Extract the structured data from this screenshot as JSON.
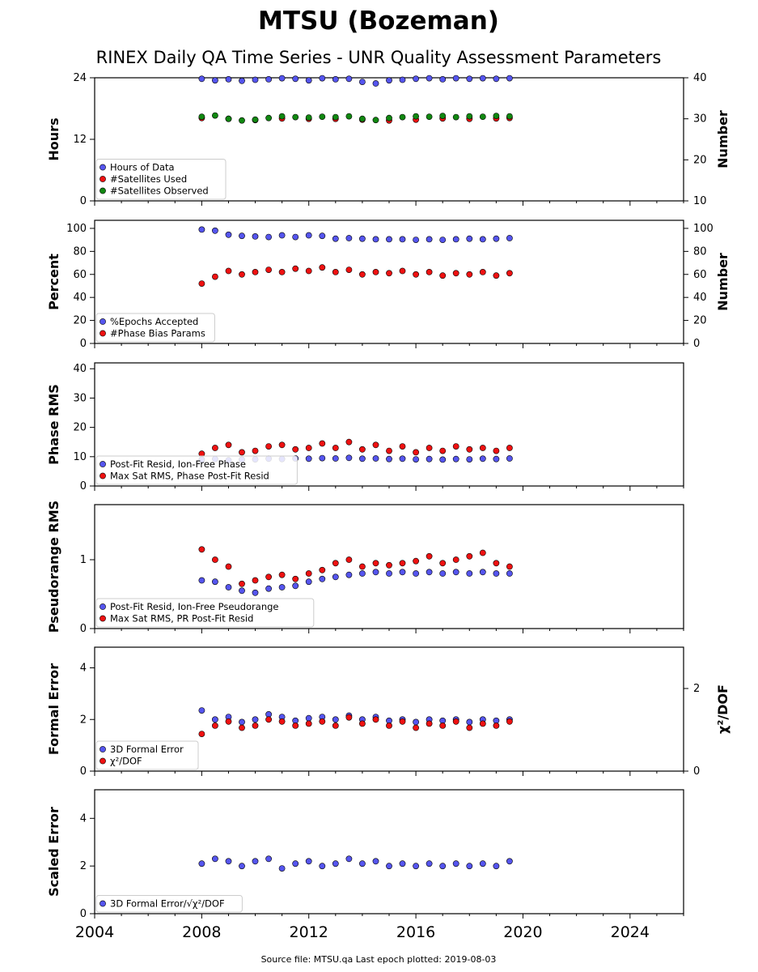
{
  "title": "MTSU (Bozeman)",
  "subtitle": "RINEX Daily QA Time Series - UNR Quality Assessment Parameters",
  "footer": "Source file: MTSU.qa Last epoch plotted: 2019-08-03",
  "colors": {
    "blue": "#5555ee",
    "red": "#ee1111",
    "green": "#118811",
    "edge": "#000000"
  },
  "chart_data": [
    {
      "type": "scatter",
      "ylabel": "Hours",
      "ylabel_right": "Number",
      "xlim": [
        2004,
        2026
      ],
      "ylim": [
        0,
        24
      ],
      "ylim_right": [
        10,
        40
      ],
      "x_ticks": [
        "2004",
        "2008",
        "2012",
        "2016",
        "2020",
        "2024"
      ],
      "y_ticks": [
        0,
        12,
        24
      ],
      "y_ticks_right": [
        10,
        20,
        30,
        40
      ],
      "legend_position": "lower-left",
      "series": [
        {
          "name": "Hours of Data",
          "color": "blue",
          "axis": "left",
          "x": [
            2008.0,
            2008.5,
            2009.0,
            2009.5,
            2010.0,
            2010.5,
            2011.0,
            2011.5,
            2012.0,
            2012.5,
            2013.0,
            2013.5,
            2014.0,
            2014.5,
            2015.0,
            2015.5,
            2016.0,
            2016.5,
            2017.0,
            2017.5,
            2018.0,
            2018.5,
            2019.0,
            2019.5
          ],
          "y": [
            23.8,
            23.5,
            23.7,
            23.4,
            23.6,
            23.7,
            23.9,
            23.8,
            23.5,
            23.9,
            23.7,
            23.8,
            23.2,
            22.9,
            23.5,
            23.6,
            23.8,
            23.9,
            23.7,
            23.9,
            23.8,
            23.9,
            23.8,
            23.9
          ]
        },
        {
          "name": "#Satellites Used",
          "color": "red",
          "axis": "right",
          "x": [
            2008.0,
            2009.0,
            2010.0,
            2011.0,
            2012.0,
            2013.0,
            2014.0,
            2015.0,
            2016.0,
            2017.0,
            2018.0,
            2019.0,
            2019.5
          ],
          "y": [
            30.2,
            30.0,
            29.7,
            30.1,
            30.0,
            30.0,
            29.8,
            29.6,
            29.8,
            30.1,
            30.0,
            30.1,
            30.2
          ]
        },
        {
          "name": "#Satellites Observed",
          "color": "green",
          "axis": "right",
          "x": [
            2008.0,
            2008.5,
            2009.0,
            2009.5,
            2010.0,
            2010.5,
            2011.0,
            2011.5,
            2012.0,
            2012.5,
            2013.0,
            2013.5,
            2014.0,
            2014.5,
            2015.0,
            2015.5,
            2016.0,
            2016.5,
            2017.0,
            2017.5,
            2018.0,
            2018.5,
            2019.0,
            2019.5
          ],
          "y": [
            30.5,
            30.8,
            30.0,
            29.6,
            29.8,
            30.2,
            30.6,
            30.4,
            30.3,
            30.5,
            30.4,
            30.6,
            30.0,
            29.7,
            30.2,
            30.4,
            30.6,
            30.5,
            30.7,
            30.4,
            30.6,
            30.5,
            30.7,
            30.6
          ]
        }
      ]
    },
    {
      "type": "scatter",
      "ylabel": "Percent",
      "ylabel_right": "Number",
      "xlim": [
        2004,
        2026
      ],
      "ylim": [
        0,
        107
      ],
      "ylim_right": [
        0,
        107
      ],
      "y_ticks": [
        0,
        20,
        40,
        60,
        80,
        100
      ],
      "y_ticks_right": [
        0,
        20,
        40,
        60,
        80,
        100
      ],
      "legend_position": "lower-left",
      "series": [
        {
          "name": "%Epochs Accepted",
          "color": "blue",
          "axis": "left",
          "x": [
            2008.0,
            2008.5,
            2009.0,
            2009.5,
            2010.0,
            2010.5,
            2011.0,
            2011.5,
            2012.0,
            2012.5,
            2013.0,
            2013.5,
            2014.0,
            2014.5,
            2015.0,
            2015.5,
            2016.0,
            2016.5,
            2017.0,
            2017.5,
            2018.0,
            2018.5,
            2019.0,
            2019.5
          ],
          "y": [
            99.0,
            98.0,
            94.5,
            93.5,
            93.0,
            92.5,
            94.0,
            92.5,
            94.0,
            93.5,
            91.0,
            91.5,
            91.0,
            90.5,
            90.5,
            90.5,
            90.0,
            90.5,
            90.0,
            90.5,
            91.0,
            90.5,
            91.0,
            91.5
          ]
        },
        {
          "name": "#Phase Bias Params",
          "color": "red",
          "axis": "right",
          "x": [
            2008.0,
            2008.5,
            2009.0,
            2009.5,
            2010.0,
            2010.5,
            2011.0,
            2011.5,
            2012.0,
            2012.5,
            2013.0,
            2013.5,
            2014.0,
            2014.5,
            2015.0,
            2015.5,
            2016.0,
            2016.5,
            2017.0,
            2017.5,
            2018.0,
            2018.5,
            2019.0,
            2019.5
          ],
          "y": [
            52.0,
            58.0,
            63.0,
            60.0,
            62.0,
            64.0,
            62.0,
            65.0,
            63.0,
            66.0,
            62.0,
            64.0,
            60.0,
            62.0,
            61.0,
            63.0,
            60.0,
            62.0,
            59.0,
            61.0,
            60.0,
            62.0,
            59.0,
            61.0
          ]
        }
      ]
    },
    {
      "type": "scatter",
      "ylabel": "Phase RMS",
      "xlim": [
        2004,
        2026
      ],
      "ylim": [
        0,
        42
      ],
      "y_ticks": [
        0,
        10,
        20,
        30,
        40
      ],
      "legend_position": "lower-left",
      "series": [
        {
          "name": "Post-Fit Resid, Ion-Free Phase",
          "color": "blue",
          "axis": "left",
          "x": [
            2008.0,
            2008.5,
            2009.0,
            2009.5,
            2010.0,
            2010.5,
            2011.0,
            2011.5,
            2012.0,
            2012.5,
            2013.0,
            2013.5,
            2014.0,
            2014.5,
            2015.0,
            2015.5,
            2016.0,
            2016.5,
            2017.0,
            2017.5,
            2018.0,
            2018.5,
            2019.0,
            2019.5
          ],
          "y": [
            9.0,
            9.2,
            8.8,
            9.0,
            9.1,
            9.3,
            9.2,
            9.4,
            9.3,
            9.5,
            9.4,
            9.6,
            9.3,
            9.4,
            9.2,
            9.3,
            9.1,
            9.2,
            9.0,
            9.2,
            9.1,
            9.3,
            9.2,
            9.4
          ]
        },
        {
          "name": "Max Sat RMS, Phase Post-Fit Resid",
          "color": "red",
          "axis": "left",
          "x": [
            2008.0,
            2008.5,
            2009.0,
            2009.5,
            2010.0,
            2010.5,
            2011.0,
            2011.5,
            2012.0,
            2012.5,
            2013.0,
            2013.5,
            2014.0,
            2014.5,
            2015.0,
            2015.5,
            2016.0,
            2016.5,
            2017.0,
            2017.5,
            2018.0,
            2018.5,
            2019.0,
            2019.5
          ],
          "y": [
            11.0,
            13.0,
            14.0,
            11.5,
            12.0,
            13.5,
            14.0,
            12.5,
            13.0,
            14.5,
            13.0,
            15.0,
            12.5,
            14.0,
            12.0,
            13.5,
            11.5,
            13.0,
            12.0,
            13.5,
            12.5,
            13.0,
            12.0,
            13.0
          ]
        }
      ]
    },
    {
      "type": "scatter",
      "ylabel": "Pseudorange RMS",
      "xlim": [
        2004,
        2026
      ],
      "ylim": [
        0,
        1.8
      ],
      "y_ticks": [
        0,
        1
      ],
      "legend_position": "lower-left",
      "series": [
        {
          "name": "Post-Fit Resid, Ion-Free Pseudorange",
          "color": "blue",
          "axis": "left",
          "x": [
            2008.0,
            2008.5,
            2009.0,
            2009.5,
            2010.0,
            2010.5,
            2011.0,
            2011.5,
            2012.0,
            2012.5,
            2013.0,
            2013.5,
            2014.0,
            2014.5,
            2015.0,
            2015.5,
            2016.0,
            2016.5,
            2017.0,
            2017.5,
            2018.0,
            2018.5,
            2019.0,
            2019.5
          ],
          "y": [
            0.7,
            0.68,
            0.6,
            0.55,
            0.52,
            0.58,
            0.6,
            0.62,
            0.68,
            0.72,
            0.75,
            0.78,
            0.8,
            0.82,
            0.8,
            0.82,
            0.8,
            0.82,
            0.8,
            0.82,
            0.8,
            0.82,
            0.8,
            0.8
          ]
        },
        {
          "name": "Max Sat RMS, PR Post-Fit Resid",
          "color": "red",
          "axis": "left",
          "x": [
            2008.0,
            2008.5,
            2009.0,
            2009.5,
            2010.0,
            2010.5,
            2011.0,
            2011.5,
            2012.0,
            2012.5,
            2013.0,
            2013.5,
            2014.0,
            2014.5,
            2015.0,
            2015.5,
            2016.0,
            2016.5,
            2017.0,
            2017.5,
            2018.0,
            2018.5,
            2019.0,
            2019.5
          ],
          "y": [
            1.15,
            1.0,
            0.9,
            0.65,
            0.7,
            0.75,
            0.78,
            0.72,
            0.8,
            0.85,
            0.95,
            1.0,
            0.9,
            0.95,
            0.92,
            0.95,
            0.98,
            1.05,
            0.95,
            1.0,
            1.05,
            1.1,
            0.95,
            0.9
          ]
        }
      ]
    },
    {
      "type": "scatter",
      "ylabel": "Formal Error",
      "ylabel_right": "χ²/DOF",
      "xlim": [
        2004,
        2026
      ],
      "ylim": [
        0,
        4.8
      ],
      "ylim_right": [
        0,
        3.0
      ],
      "y_ticks": [
        0,
        2,
        4
      ],
      "y_ticks_right": [
        0,
        2
      ],
      "legend_position": "lower-left",
      "series": [
        {
          "name": "3D Formal Error",
          "color": "blue",
          "axis": "left",
          "x": [
            2008.0,
            2008.5,
            2009.0,
            2009.5,
            2010.0,
            2010.5,
            2011.0,
            2011.5,
            2012.0,
            2012.5,
            2013.0,
            2013.5,
            2014.0,
            2014.5,
            2015.0,
            2015.5,
            2016.0,
            2016.5,
            2017.0,
            2017.5,
            2018.0,
            2018.5,
            2019.0,
            2019.5
          ],
          "y": [
            2.35,
            2.0,
            2.1,
            1.9,
            2.0,
            2.2,
            2.1,
            1.95,
            2.05,
            2.1,
            2.0,
            2.15,
            2.0,
            2.1,
            1.95,
            2.0,
            1.9,
            2.0,
            1.95,
            2.0,
            1.9,
            2.0,
            1.95,
            2.0
          ]
        },
        {
          "name": "χ²/DOF",
          "color": "red",
          "axis": "right",
          "x": [
            2008.0,
            2008.5,
            2009.0,
            2009.5,
            2010.0,
            2010.5,
            2011.0,
            2011.5,
            2012.0,
            2012.5,
            2013.0,
            2013.5,
            2014.0,
            2014.5,
            2015.0,
            2015.5,
            2016.0,
            2016.5,
            2017.0,
            2017.5,
            2018.0,
            2018.5,
            2019.0,
            2019.5
          ],
          "y": [
            0.9,
            1.1,
            1.2,
            1.05,
            1.1,
            1.25,
            1.2,
            1.1,
            1.15,
            1.2,
            1.1,
            1.3,
            1.15,
            1.25,
            1.1,
            1.2,
            1.05,
            1.15,
            1.1,
            1.2,
            1.05,
            1.15,
            1.1,
            1.2
          ]
        }
      ]
    },
    {
      "type": "scatter",
      "ylabel": "Scaled Error",
      "xlim": [
        2004,
        2026
      ],
      "ylim": [
        0,
        5.2
      ],
      "y_ticks": [
        0,
        2,
        4
      ],
      "legend_position": "lower-left",
      "series": [
        {
          "name": "3D Formal Error/√χ²/DOF",
          "color": "blue",
          "axis": "left",
          "x": [
            2008.0,
            2008.5,
            2009.0,
            2009.5,
            2010.0,
            2010.5,
            2011.0,
            2011.5,
            2012.0,
            2012.5,
            2013.0,
            2013.5,
            2014.0,
            2014.5,
            2015.0,
            2015.5,
            2016.0,
            2016.5,
            2017.0,
            2017.5,
            2018.0,
            2018.5,
            2019.0,
            2019.5
          ],
          "y": [
            2.1,
            2.3,
            2.2,
            2.0,
            2.2,
            2.3,
            1.9,
            2.1,
            2.2,
            2.0,
            2.1,
            2.3,
            2.1,
            2.2,
            2.0,
            2.1,
            2.0,
            2.1,
            2.0,
            2.1,
            2.0,
            2.1,
            2.0,
            2.2
          ]
        }
      ]
    }
  ]
}
